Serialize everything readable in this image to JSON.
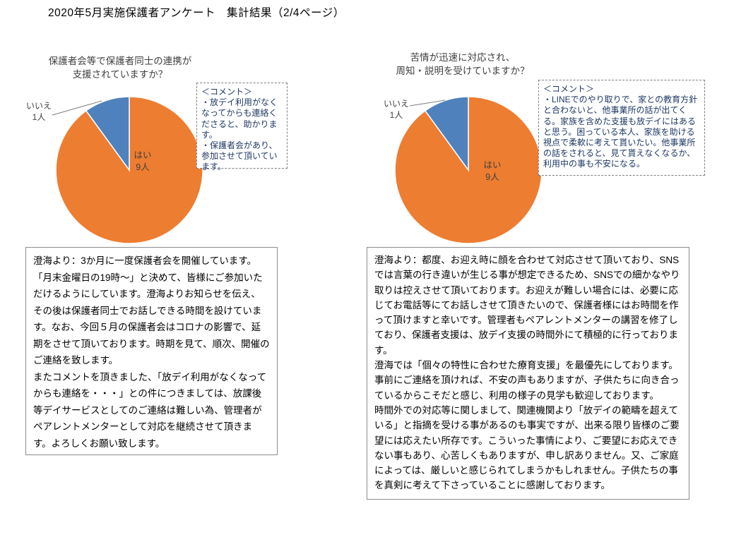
{
  "page": {
    "title": "2020年5月実施保護者アンケート　集計結果（2/4ページ）"
  },
  "chart_data": [
    {
      "type": "pie",
      "title": "保護者会等で保護者同士の連携が支援されていますか？",
      "title_lines": [
        "保護者会等で保護者同士の連携が",
        "支援されていますか？"
      ],
      "categories": [
        "はい",
        "いいえ"
      ],
      "values": [
        9,
        1
      ],
      "unit": "人",
      "colors": [
        "#ED7D31",
        "#4F81BD"
      ],
      "labels": [
        {
          "text": "はい",
          "count": "9人"
        },
        {
          "text": "いいえ",
          "count": "1人"
        }
      ],
      "start_angle": 0,
      "direction": "clockwise",
      "legend": "none"
    },
    {
      "type": "pie",
      "title": "苦情が迅速に対応され、周知・説明を受けていますか？",
      "title_lines": [
        "苦情が迅速に対応され、",
        "周知・説明を受けていますか？"
      ],
      "categories": [
        "はい",
        "いいえ"
      ],
      "values": [
        9,
        1
      ],
      "unit": "人",
      "colors": [
        "#ED7D31",
        "#4F81BD"
      ],
      "labels": [
        {
          "text": "はい",
          "count": "9人"
        },
        {
          "text": "いいえ",
          "count": "1人"
        }
      ],
      "start_angle": 0,
      "direction": "clockwise",
      "legend": "none"
    }
  ],
  "columns": [
    {
      "comment": {
        "heading": "＜コメント＞",
        "items": [
          "・放デイ利用がなくなってからも連絡くださると、助かります。",
          "・保護者会があり、参加させて頂いています。"
        ]
      },
      "answer_paragraphs": [
        "澄海より：3か月に一度保護者会を開催しています。「月末金曜日の19時～」と決めて、皆様にご参加いただけるようにしています。澄海よりお知らせを伝え、その後は保護者同士でお話しできる時間を設けています。なお、今回５月の保護者会はコロナの影響で、延期をさせて頂いております。時期を見て、順次、開催のご連絡を致します。",
        "またコメントを頂きました、「放デイ利用がなくなってからも連絡を・・・」との件につきましては、放課後等デイサービスとしてのご連絡は難しい為、管理者がペアレントメンターとして対応を継続させて頂きます。よろしくお願い致します。"
      ]
    },
    {
      "comment": {
        "heading": "＜コメント＞",
        "items": [
          "・LINEでのやり取りで、家との教育方針と合わないと、他事業所の話が出てくる。家族を含めた支援も放デイにはあると思う。困っている本人、家族を助ける視点で柔軟に考えて貰いたい。他事業所の話をされると、見て貰えなくなるか、利用中の事も不安になる。"
        ]
      },
      "answer_paragraphs": [
        "澄海より：都度、お迎え時に顔を合わせて対応させて頂いており、SNSでは言葉の行き違いが生じる事が想定できるため、SNSでの細かなやり取りは控えさせて頂いております。お迎えが難しい場合には、必要に応じてお電話等にてお話しさせて頂きたいので、保護者様にはお時間を作って頂けますと幸いです。管理者もペアレントメンターの講習を修了しており、保護者支援は、放デイ支援の時間外にて積極的に行っております。",
        "澄海では「個々の特性に合わせた療育支援」を最優先にしております。事前にご連絡を頂ければ、不安の声もありますが、子供たちに向き合っているからこそだと感じ、利用の様子の見学も歓迎しております。",
        "時間外での対応等に関しまして、関連機関より「放デイの範疇を超えている」と指摘を受ける事があるのも事実ですが、出来る限り皆様のご要望には応えたい所存です。こういった事情により、ご要望にお応えできない事もあり、心苦しくもありますが、申し訳ありません。又、ご家庭によっては、厳しいと感じられてしまうかもしれません。子供たちの事を真剣に考えて下さっていることに感謝しております。"
      ]
    }
  ]
}
